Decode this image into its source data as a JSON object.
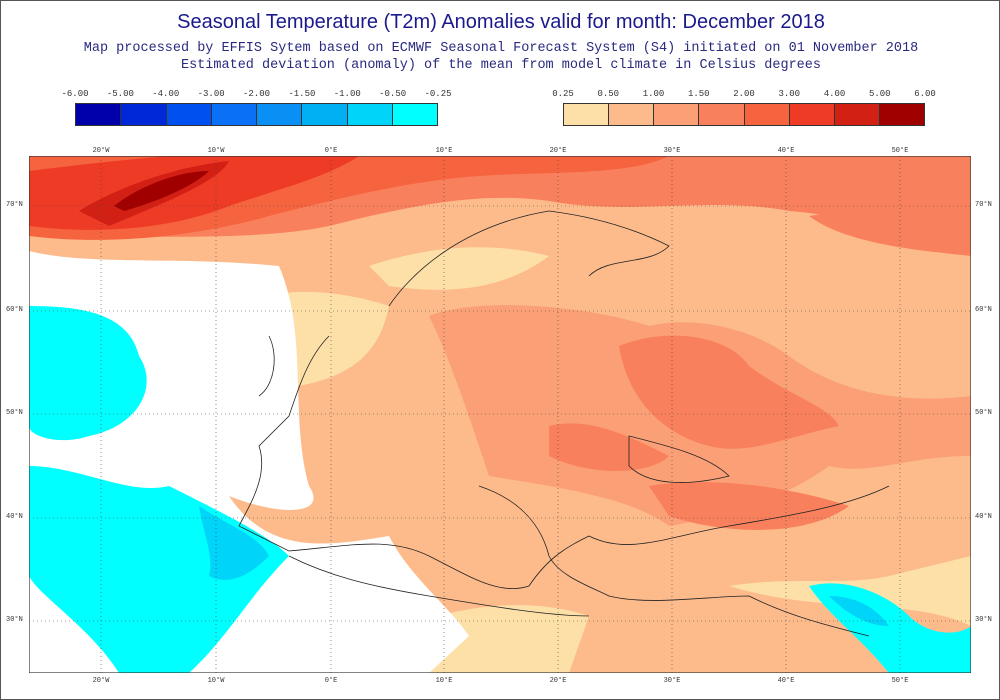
{
  "title": "Seasonal Temperature (T2m) Anomalies valid for month: December 2018",
  "subtitle1": "Map processed by EFFIS Sytem based on ECMWF Seasonal Forecast System (S4) initiated on 01 November 2018",
  "subtitle2": "Estimated deviation (anomaly) of the mean from model climate in Celsius degrees",
  "legend_negative": {
    "labels": [
      "-6.00",
      "-5.00",
      "-4.00",
      "-3.00",
      "-2.00",
      "-1.50",
      "-1.00",
      "-0.50",
      "-0.25"
    ],
    "colors": [
      "#0000aa",
      "#0028d8",
      "#0050f0",
      "#0a70f5",
      "#0a90f5",
      "#00b0f3",
      "#00d4f8",
      "#00ffff"
    ]
  },
  "legend_positive": {
    "labels": [
      "0.25",
      "0.50",
      "1.00",
      "1.50",
      "2.00",
      "3.00",
      "4.00",
      "5.00",
      "6.00"
    ],
    "colors": [
      "#fde0a8",
      "#fdbb8c",
      "#fb9f76",
      "#f9805c",
      "#f5633f",
      "#ee3b25",
      "#d32015",
      "#a00000"
    ]
  },
  "longitude_ticks": [
    "20°W",
    "10°W",
    "0°E",
    "10°E",
    "20°E",
    "30°E",
    "40°E",
    "50°E"
  ],
  "latitude_ticks": [
    "70°N",
    "60°N",
    "50°N",
    "40°N",
    "30°N"
  ]
}
